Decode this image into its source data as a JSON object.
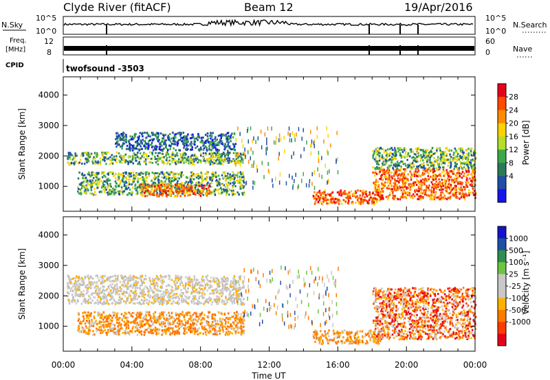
{
  "header": {
    "title": "Clyde River (fitACF)",
    "beam": "Beam 12",
    "date": "19/Apr/2016"
  },
  "strips": {
    "nsky_label": "N.Sky",
    "nsearch_label": "N.Search",
    "nsky_ticks": [
      "10^5",
      "10^0"
    ],
    "nsearch_ticks": [
      "10^5",
      "10^0"
    ],
    "freq_label_1": "Freq.",
    "freq_label_2": "[MHz]",
    "freq_ticks": [
      "12",
      "8"
    ],
    "nave_label": "Nave",
    "nave_ticks": [
      "60",
      "0"
    ],
    "cpid_label": "CPID",
    "cpid_value": "twofsound -3503"
  },
  "colorbars": {
    "power": {
      "label": "Power [dB]",
      "ticks": [
        "28",
        "24",
        "20",
        "16",
        "12",
        "8",
        "4"
      ],
      "colors": [
        "#e8001a",
        "#ff4a00",
        "#ff8c00",
        "#ffd200",
        "#b5dd2a",
        "#3ca84a",
        "#2a7a5a",
        "#1f4fa6",
        "#1414ee"
      ]
    },
    "velocity": {
      "label": "Velocity [m s⁻¹]",
      "ticks": [
        "1000",
        "500",
        "100",
        "25",
        "-25",
        "-100",
        "-500",
        "-1000"
      ],
      "colors": [
        "#1414cc",
        "#1f4fa6",
        "#2f8f4f",
        "#6cc540",
        "#c8c8c8",
        "#c8c8c8",
        "#ffb000",
        "#ff7b00",
        "#ff3a00",
        "#e8001a"
      ]
    }
  },
  "chart_data": [
    {
      "type": "heatmap",
      "name": "power",
      "ylabel": "Slant Range [km]",
      "xlabel": "Time UT",
      "x_ticks": [
        "00:00",
        "04:00",
        "08:00",
        "12:00",
        "16:00",
        "20:00",
        "00:00"
      ],
      "y_ticks": [
        1000,
        2000,
        3000,
        4000
      ],
      "xlim": [
        0,
        24
      ],
      "ylim": [
        180,
        4600
      ],
      "bands": [
        {
          "t0": 0.2,
          "t1": 10.5,
          "r0": 1750,
          "r1": 2150,
          "level": "mid"
        },
        {
          "t0": 0.8,
          "t1": 10.5,
          "r0": 750,
          "r1": 1500,
          "level": "mid"
        },
        {
          "t0": 4.5,
          "t1": 8.5,
          "r0": 700,
          "r1": 1100,
          "level": "high"
        },
        {
          "t0": 14.5,
          "t1": 18.5,
          "r0": 450,
          "r1": 900,
          "level": "high"
        },
        {
          "t0": 18.0,
          "t1": 24.0,
          "r0": 600,
          "r1": 1600,
          "level": "high"
        },
        {
          "t0": 18.0,
          "t1": 24.0,
          "r0": 1600,
          "r1": 2300,
          "level": "mid"
        },
        {
          "t0": 3.0,
          "t1": 10.0,
          "r0": 2200,
          "r1": 2800,
          "level": "low"
        },
        {
          "t0": 10.0,
          "t1": 16.0,
          "r0": 1000,
          "r1": 3000,
          "level": "sparse"
        }
      ]
    },
    {
      "type": "heatmap",
      "name": "velocity",
      "ylabel": "Slant Range [km]",
      "xlabel": "Time UT",
      "x_ticks": [
        "00:00",
        "04:00",
        "08:00",
        "12:00",
        "16:00",
        "20:00",
        "00:00"
      ],
      "y_ticks": [
        1000,
        2000,
        3000,
        4000
      ],
      "xlim": [
        0,
        24
      ],
      "ylim": [
        180,
        4600
      ],
      "bands": [
        {
          "t0": 0.2,
          "t1": 10.5,
          "r0": 1750,
          "r1": 2700,
          "level": "grey"
        },
        {
          "t0": 0.8,
          "t1": 10.5,
          "r0": 750,
          "r1": 1500,
          "level": "orange"
        },
        {
          "t0": 14.5,
          "t1": 18.5,
          "r0": 450,
          "r1": 900,
          "level": "orange"
        },
        {
          "t0": 18.0,
          "t1": 24.0,
          "r0": 600,
          "r1": 2300,
          "level": "redorange"
        },
        {
          "t0": 10.0,
          "t1": 16.0,
          "r0": 1000,
          "r1": 3000,
          "level": "sparse"
        }
      ]
    }
  ]
}
